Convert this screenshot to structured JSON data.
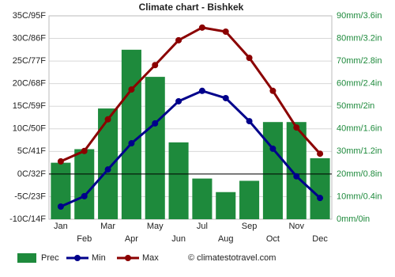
{
  "chart_data": {
    "type": "climate",
    "title": "Climate chart - Bishkek",
    "categories": [
      "Jan",
      "Feb",
      "Mar",
      "Apr",
      "May",
      "Jun",
      "Jul",
      "Aug",
      "Sep",
      "Oct",
      "Nov",
      "Dec"
    ],
    "series": [
      {
        "name": "Prec",
        "type": "bar",
        "axis": "y2",
        "color": "#1e8a3c",
        "values": [
          25,
          31,
          49,
          75,
          63,
          34,
          18,
          12,
          17,
          43,
          43,
          27
        ]
      },
      {
        "name": "Min",
        "type": "line",
        "color": "#00008b",
        "values": [
          -7.2,
          -4.9,
          1.0,
          6.8,
          11.2,
          16.1,
          18.4,
          16.8,
          11.7,
          5.6,
          -0.5,
          -5.3
        ]
      },
      {
        "name": "Max",
        "type": "line",
        "color": "#8b0000",
        "values": [
          2.8,
          5.1,
          12.1,
          18.7,
          24.1,
          29.6,
          32.4,
          31.5,
          25.7,
          18.4,
          10.3,
          4.5
        ]
      }
    ],
    "ylim": [
      -10,
      35
    ],
    "yticks": [
      {
        "value": -10,
        "label": "-10C/14F"
      },
      {
        "value": -5,
        "label": "-5C/23F"
      },
      {
        "value": 0,
        "label": "0C/32F"
      },
      {
        "value": 5,
        "label": "5C/41F"
      },
      {
        "value": 10,
        "label": "10C/50F"
      },
      {
        "value": 15,
        "label": "15C/59F"
      },
      {
        "value": 20,
        "label": "20C/68F"
      },
      {
        "value": 25,
        "label": "25C/77F"
      },
      {
        "value": 30,
        "label": "30C/86F"
      },
      {
        "value": 35,
        "label": "35C/95F"
      }
    ],
    "y2lim": [
      0,
      90
    ],
    "y2ticks": [
      {
        "value": 0,
        "label": "0mm/0in"
      },
      {
        "value": 10,
        "label": "10mm/0.4in"
      },
      {
        "value": 20,
        "label": "20mm/0.8in"
      },
      {
        "value": 30,
        "label": "30mm/1.2in"
      },
      {
        "value": 40,
        "label": "40mm/1.6in"
      },
      {
        "value": 50,
        "label": "50mm/2in"
      },
      {
        "value": 60,
        "label": "60mm/2.4in"
      },
      {
        "value": 70,
        "label": "70mm/2.8in"
      },
      {
        "value": 80,
        "label": "80mm/3.2in"
      },
      {
        "value": 90,
        "label": "90mm/3.6in"
      }
    ],
    "grid": true,
    "legend": "bottom-left",
    "source": "© climatestotravel.com"
  }
}
